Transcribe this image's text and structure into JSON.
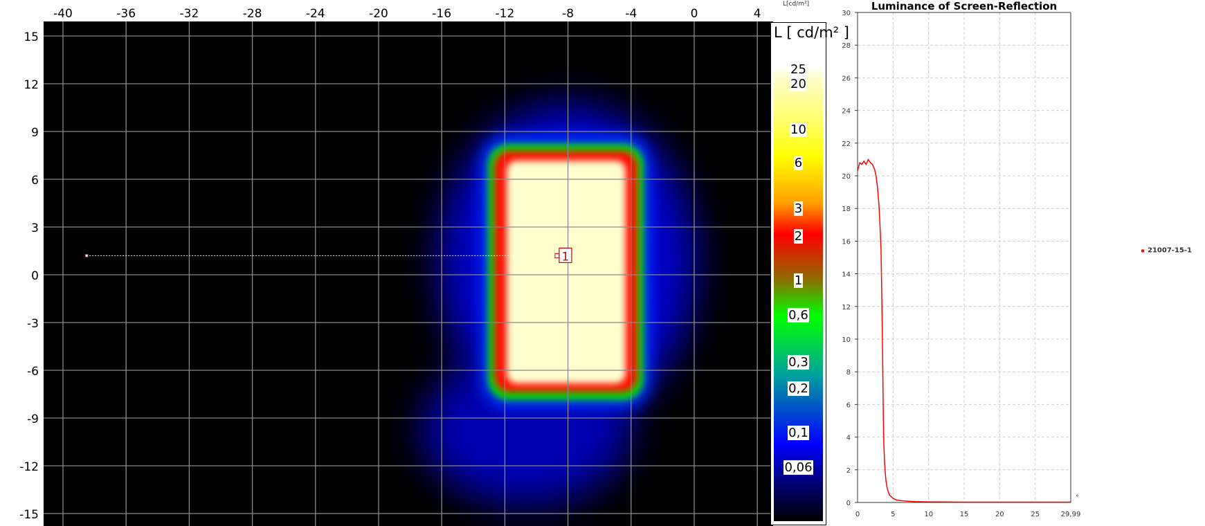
{
  "chart_data": [
    {
      "type": "heatmap",
      "x_ticks": [
        "-40",
        "-36",
        "-32",
        "-28",
        "-24",
        "-20",
        "-16",
        "-12",
        "-8",
        "-4",
        "0",
        "4"
      ],
      "y_ticks": [
        "15",
        "12",
        "9",
        "6",
        "3",
        "0",
        "-3",
        "-6",
        "-9",
        "-12",
        "-15"
      ],
      "xlim": [
        -41.2,
        5.0
      ],
      "ylim": [
        -15.9,
        15.9
      ],
      "grid": true,
      "background_color": "#000000",
      "colorbar": {
        "title": "L [ cd/m² ]",
        "labels": [
          "25",
          "20",
          "10",
          "6",
          "3",
          "2",
          "1",
          "0,6",
          "0,3",
          "0,2",
          "0,1",
          "0,06"
        ],
        "colors": [
          "#ffffff",
          "#ffffc8",
          "#ffff60",
          "#ffff00",
          "#ffa000",
          "#ff0000",
          "#8c6e00",
          "#00ff00",
          "#00a0a0",
          "#0060c0",
          "#0000ff",
          "#000070",
          "#000000"
        ]
      },
      "marker": {
        "label": "1",
        "line_start": [
          -38.5,
          1.2
        ],
        "point": [
          -8.6,
          1.2
        ]
      }
    },
    {
      "type": "line",
      "title": "Luminance of Screen-Reflection",
      "ylabel": "L[cd/m²]",
      "xlabel": "°",
      "xlim": [
        0,
        29.99
      ],
      "ylim": [
        0,
        30
      ],
      "x_ticks": [
        "0",
        "5",
        "10",
        "15",
        "20",
        "25",
        "29,99"
      ],
      "y_ticks": [
        "0",
        "2",
        "4",
        "6",
        "8",
        "10",
        "12",
        "14",
        "16",
        "18",
        "20",
        "22",
        "24",
        "26",
        "28",
        "30"
      ],
      "grid": true,
      "legend_position": "right",
      "series": [
        {
          "name": "21007-15-1",
          "color": "#ff0000",
          "x": [
            0,
            0.3,
            0.6,
            0.9,
            1.2,
            1.5,
            1.8,
            2.1,
            2.4,
            2.6,
            2.8,
            3.0,
            3.1,
            3.2,
            3.3,
            3.4,
            3.5,
            3.55,
            3.6,
            3.65,
            3.7,
            3.8,
            3.9,
            4.0,
            4.2,
            4.5,
            5.0,
            5.5,
            6.0,
            7.0,
            8.0,
            10.0,
            12.0,
            15.0,
            20.0,
            25.0,
            29.99
          ],
          "y": [
            20.3,
            20.8,
            20.7,
            20.9,
            20.7,
            21.0,
            20.8,
            20.7,
            20.4,
            20.0,
            19.3,
            18.3,
            17.5,
            16.5,
            15.5,
            13.0,
            10.0,
            8.0,
            6.0,
            4.5,
            3.5,
            2.5,
            1.8,
            1.3,
            0.8,
            0.45,
            0.25,
            0.15,
            0.12,
            0.08,
            0.05,
            0.04,
            0.03,
            0.02,
            0.02,
            0.02,
            0.02
          ]
        }
      ]
    }
  ]
}
